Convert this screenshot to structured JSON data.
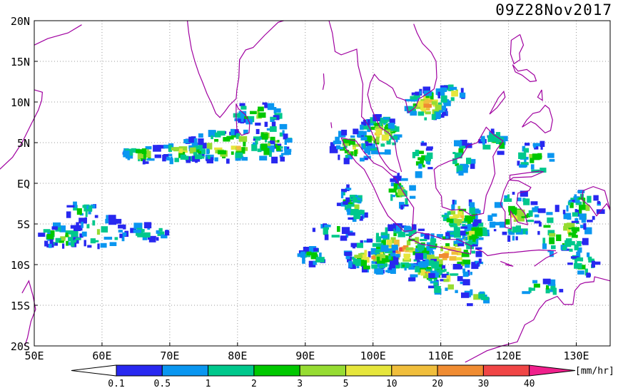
{
  "map": {
    "timestamp": "09Z28Nov2017",
    "lon_labels": [
      "50E",
      "60E",
      "70E",
      "80E",
      "90E",
      "100E",
      "110E",
      "120E",
      "130E"
    ],
    "lat_labels": [
      "20N",
      "15N",
      "10N",
      "5N",
      "EQ",
      "5S",
      "10S",
      "15S",
      "20S"
    ],
    "lon_range": [
      50,
      135
    ],
    "lat_range": [
      -20,
      20
    ],
    "coastline_color": "#a000a0",
    "gridline_style": "dotted-grey"
  },
  "colorbar": {
    "unit": "[mm/hr]",
    "levels": [
      "0.1",
      "0.5",
      "1",
      "2",
      "3",
      "5",
      "10",
      "20",
      "30",
      "40"
    ],
    "colors": [
      "#2828f0",
      "#0a96f0",
      "#00c88c",
      "#00c800",
      "#96dc32",
      "#e6e63c",
      "#f0be3c",
      "#f08c32",
      "#f04646",
      "#f0208c"
    ]
  }
}
